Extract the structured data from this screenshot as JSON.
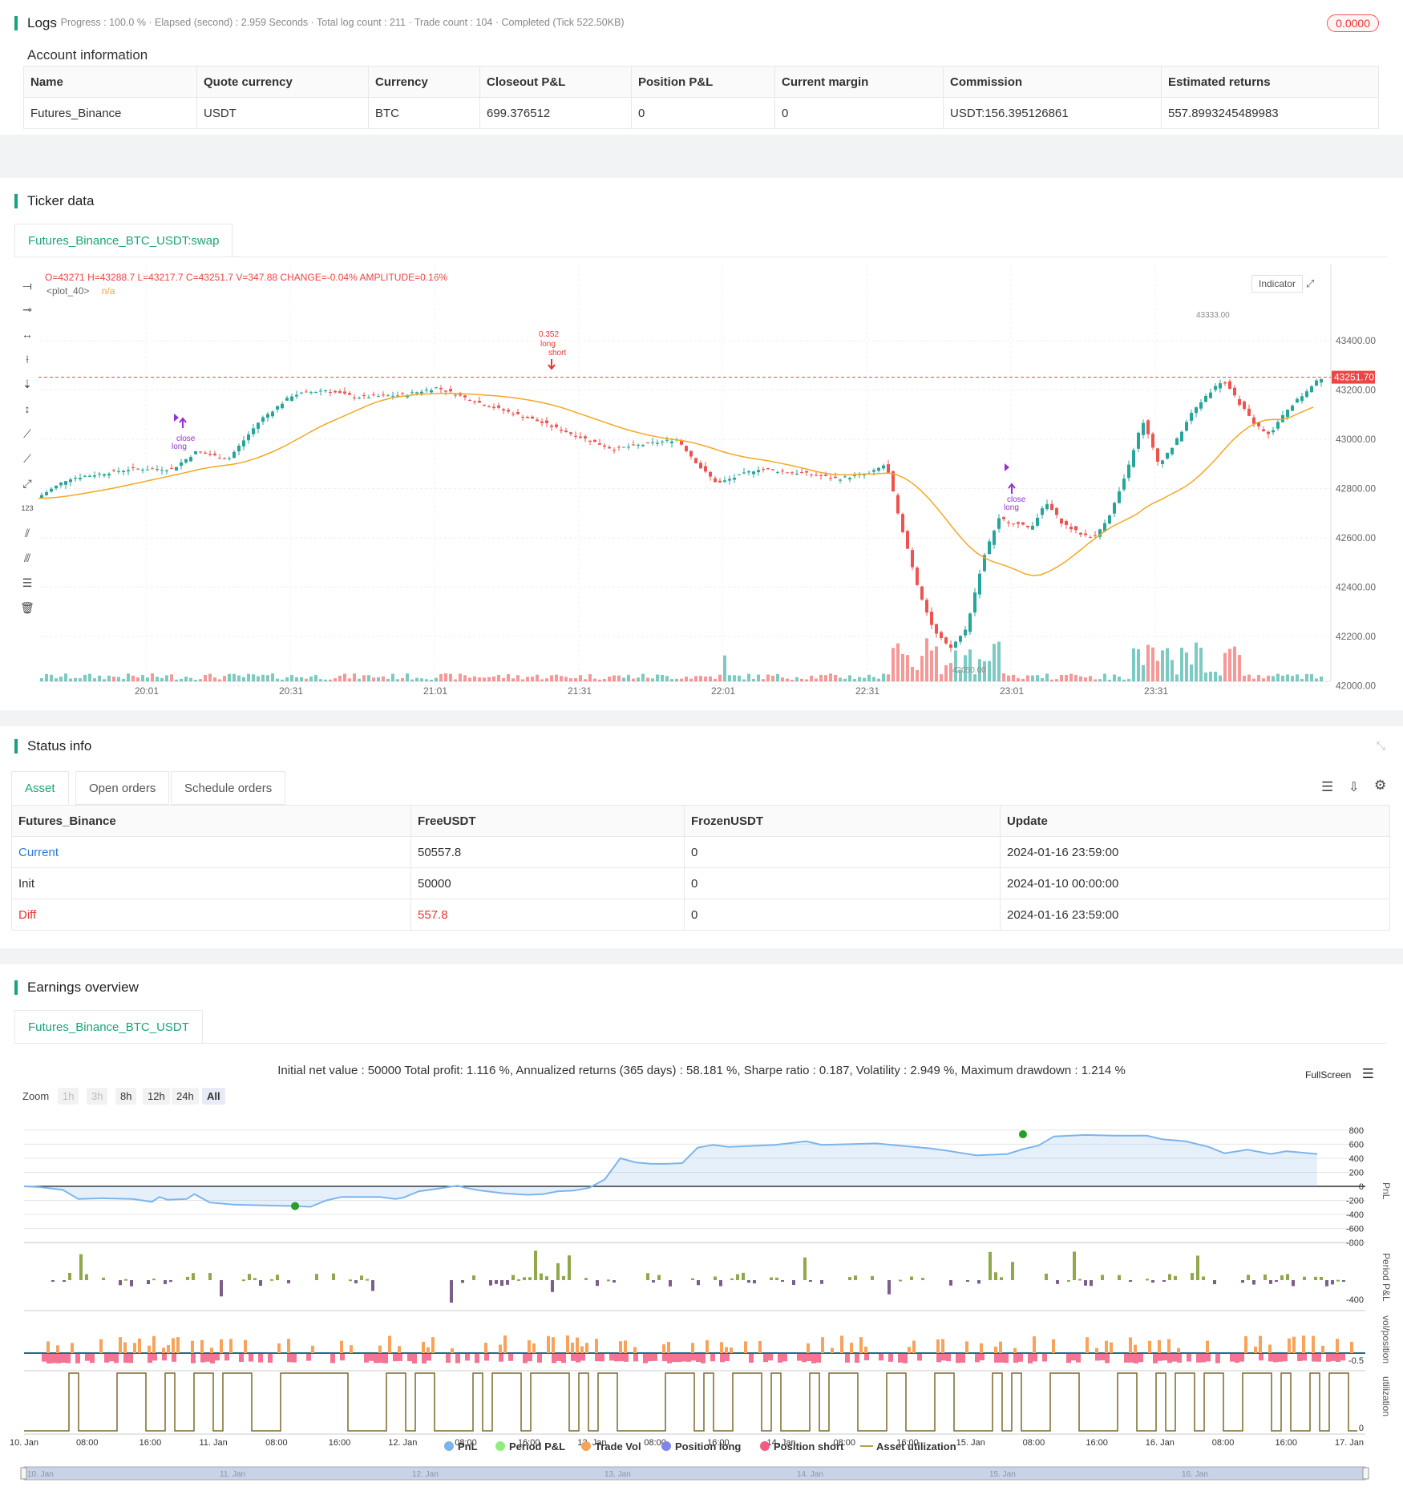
{
  "logs": {
    "title": "Logs",
    "status": "· Progress : 100.0 % · Elapsed (second) : 2.959 Seconds · Total log count : 211 · Trade count : 104 · Completed (Tick 522.50KB)",
    "badge": "0.0000"
  },
  "account": {
    "title": "Account information",
    "headers": [
      "Name",
      "Quote currency",
      "Currency",
      "Closeout P&L",
      "Position P&L",
      "Current margin",
      "Commission",
      "Estimated returns"
    ],
    "row": [
      "Futures_Binance",
      "USDT",
      "BTC",
      "699.376512",
      "0",
      "0",
      "USDT:156.395126861",
      "557.8993245489983"
    ]
  },
  "ticker": {
    "title": "Ticker data",
    "tab": "Futures_Binance_BTC_USDT:swap",
    "ohlc": {
      "o": "43271",
      "h": "43288.7",
      "l": "43217.7",
      "c": "43251.7",
      "v": "347.88",
      "change": "-0.04%",
      "amplitude": "0.16%"
    },
    "plot_label": "<plot_40>",
    "plot_value": "n/a",
    "indicator_btn": "Indicator",
    "price_label": "43251.70",
    "high_label": "43333.00",
    "low_label": "42050.00",
    "trade_labels": [
      "close",
      "long",
      "0.352",
      "long",
      "short",
      "close",
      "long"
    ],
    "y_ticks": [
      "43400.00",
      "43200.00",
      "43000.00",
      "42800.00",
      "42600.00",
      "42400.00",
      "42200.00",
      "42000.00"
    ],
    "x_ticks": [
      "20:01",
      "20:31",
      "21:01",
      "21:31",
      "22:01",
      "22:31",
      "23:01",
      "23:31"
    ],
    "colors": {
      "up": "#26a69a",
      "down": "#ef5350",
      "ma": "#f5a623"
    }
  },
  "status": {
    "title": "Status info",
    "tabs": [
      "Asset",
      "Open orders",
      "Schedule orders"
    ],
    "headers": [
      "Futures_Binance",
      "FreeUSDT",
      "FrozenUSDT",
      "Update"
    ],
    "rows": [
      [
        "Current",
        "50557.8",
        "0",
        "2024-01-16 23:59:00"
      ],
      [
        "Init",
        "50000",
        "0",
        "2024-01-10 00:00:00"
      ],
      [
        "Diff",
        "557.8",
        "0",
        "2024-01-16 23:59:00"
      ]
    ]
  },
  "earnings": {
    "title": "Earnings overview",
    "tab": "Futures_Binance_BTC_USDT",
    "summary": "Initial net value : 50000 Total profit: 1.116 %, Annualized returns (365 days) : 58.181 %, Sharpe ratio : 0.187, Volatility : 2.949 %, Maximum drawdown : 1.214 %",
    "fullscreen": "FullScreen",
    "zoom_label": "Zoom",
    "zoom": [
      "1h",
      "3h",
      "8h",
      "12h",
      "24h",
      "All"
    ],
    "pnl_ticks": [
      "800",
      "600",
      "400",
      "200",
      "0",
      "-200",
      "-400",
      "-600",
      "-800"
    ],
    "period_tick": "-400",
    "vol_tick": "-0.5",
    "util_tick": "0",
    "axis_labels": [
      "PnL",
      "Period P&L",
      "vol/position",
      "utilization"
    ],
    "x_ticks": [
      "10. Jan",
      "08:00",
      "16:00",
      "11. Jan",
      "08:00",
      "16:00",
      "12. Jan",
      "08:00",
      "16:00",
      "13. Jan",
      "08:00",
      "16:00",
      "14. Jan",
      "08:00",
      "16:00",
      "15. Jan",
      "08:00",
      "16:00",
      "16. Jan",
      "08:00",
      "16:00",
      "17. Jan"
    ],
    "nav_ticks": [
      "10. Jan",
      "11. Jan",
      "12. Jan",
      "13. Jan",
      "14. Jan",
      "15. Jan",
      "16. Jan"
    ],
    "legend": [
      {
        "label": "PnL",
        "color": "#7cb5ec"
      },
      {
        "label": "Period P&L",
        "color": "#90ed7d"
      },
      {
        "label": "Trade Vol",
        "color": "#f7a35c"
      },
      {
        "label": "Position long",
        "color": "#8085e9"
      },
      {
        "label": "Position short",
        "color": "#f15c80"
      },
      {
        "label": "Asset utilization",
        "color": "#b8a04a"
      }
    ]
  }
}
